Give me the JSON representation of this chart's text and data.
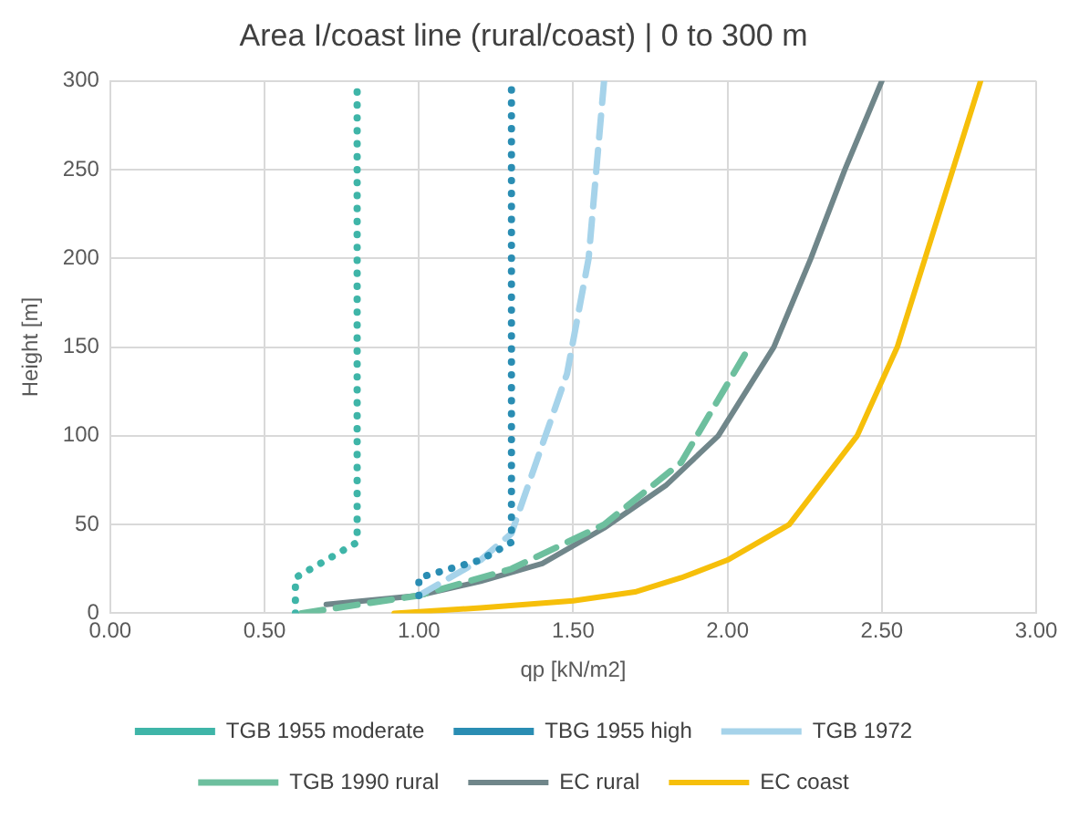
{
  "chart_data": {
    "type": "line",
    "title": "Area I/coast line (rural/coast) | 0 to 300 m",
    "xlabel": "qp [kN/m2]",
    "ylabel": "Height [m]",
    "xlim": [
      0,
      3
    ],
    "xticks": [
      {
        "value": 0,
        "label": "0.00"
      },
      {
        "value": 0.5,
        "label": "0.50"
      },
      {
        "value": 1,
        "label": "1.00"
      },
      {
        "value": 1.5,
        "label": "1.50"
      },
      {
        "value": 2,
        "label": "2.00"
      },
      {
        "value": 2.5,
        "label": "2.50"
      },
      {
        "value": 3,
        "label": "3.00"
      }
    ],
    "ylim": [
      0,
      300
    ],
    "yticks": [
      0,
      50,
      100,
      150,
      200,
      250,
      300
    ],
    "grid": true,
    "legend": "bottom",
    "marker": "none",
    "series": [
      {
        "name": "TGB 1955 moderate",
        "color": "#3fb5a8",
        "line_style": "dotted",
        "x": [
          0.6,
          0.6,
          0.8,
          0.8
        ],
        "values": [
          0,
          20,
          40,
          300
        ]
      },
      {
        "name": "TBG 1955 high",
        "color": "#2a8db3",
        "line_style": "dotted",
        "x": [
          1.0,
          1.0,
          1.2,
          1.3,
          1.3
        ],
        "values": [
          10,
          20,
          30,
          40,
          295
        ]
      },
      {
        "name": "TGB 1972",
        "color": "#a6d3ea",
        "line_style": "dashed",
        "x": [
          1.0,
          1.1,
          1.2,
          1.3,
          1.38,
          1.48,
          1.55,
          1.6
        ],
        "values": [
          10,
          20,
          30,
          45,
          85,
          135,
          200,
          300
        ]
      },
      {
        "name": "TGB 1990 rural",
        "color": "#6dbf9e",
        "line_style": "dashed",
        "x": [
          0.62,
          1.0,
          1.3,
          1.6,
          1.85,
          2.06
        ],
        "values": [
          0,
          10,
          25,
          50,
          85,
          147
        ]
      },
      {
        "name": "EC rural",
        "color": "#70868a",
        "line_style": "solid",
        "x": [
          0.7,
          1.0,
          1.2,
          1.4,
          1.6,
          1.8,
          1.97,
          2.15,
          2.27,
          2.38,
          2.5
        ],
        "values": [
          5,
          10,
          18,
          28,
          48,
          72,
          100,
          150,
          200,
          250,
          300
        ]
      },
      {
        "name": "EC coast",
        "color": "#f6bf0a",
        "line_style": "solid",
        "x": [
          0.92,
          1.2,
          1.5,
          1.7,
          1.85,
          2.0,
          2.2,
          2.42,
          2.55,
          2.64,
          2.73,
          2.82
        ],
        "values": [
          0,
          3,
          7,
          12,
          20,
          30,
          50,
          100,
          150,
          200,
          250,
          300
        ]
      }
    ]
  }
}
